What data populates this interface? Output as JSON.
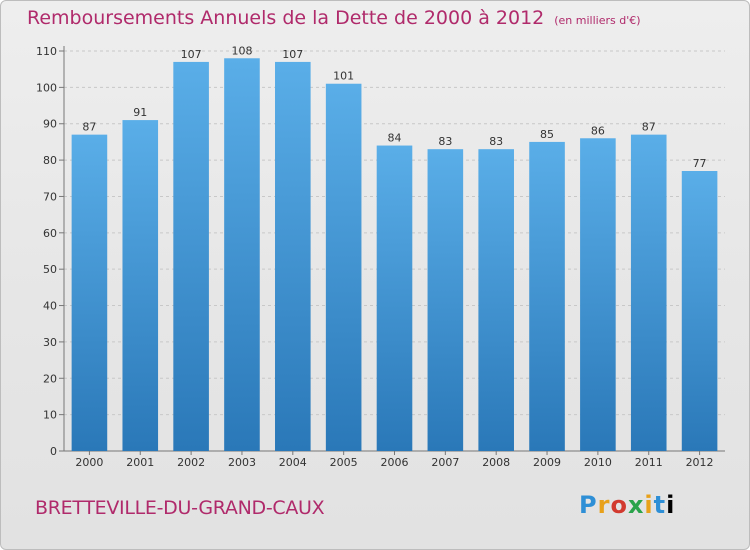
{
  "header": {
    "title": "Remboursements Annuels de la Dette de 2000 à 2012",
    "unit": "(en milliers d'€)"
  },
  "footer": {
    "city": "BRETTEVILLE-DU-GRAND-CAUX",
    "logo": "Proxiti"
  },
  "colors": {
    "title": "#b02a6b",
    "bar_top": "#5aaee8",
    "bar_bottom": "#2a78b8",
    "grid": "#c8c8c8"
  },
  "chart_data": {
    "type": "bar",
    "title": "Remboursements Annuels de la Dette de 2000 à 2012",
    "categories": [
      "2000",
      "2001",
      "2002",
      "2003",
      "2004",
      "2005",
      "2006",
      "2007",
      "2008",
      "2009",
      "2010",
      "2011",
      "2012"
    ],
    "values": [
      87,
      91,
      107,
      108,
      107,
      101,
      84,
      83,
      83,
      85,
      86,
      87,
      77
    ],
    "ylim": [
      0,
      110
    ],
    "yticks": [
      0,
      10,
      20,
      30,
      40,
      50,
      60,
      70,
      80,
      90,
      100,
      110
    ],
    "grid": true,
    "legend": "none"
  }
}
